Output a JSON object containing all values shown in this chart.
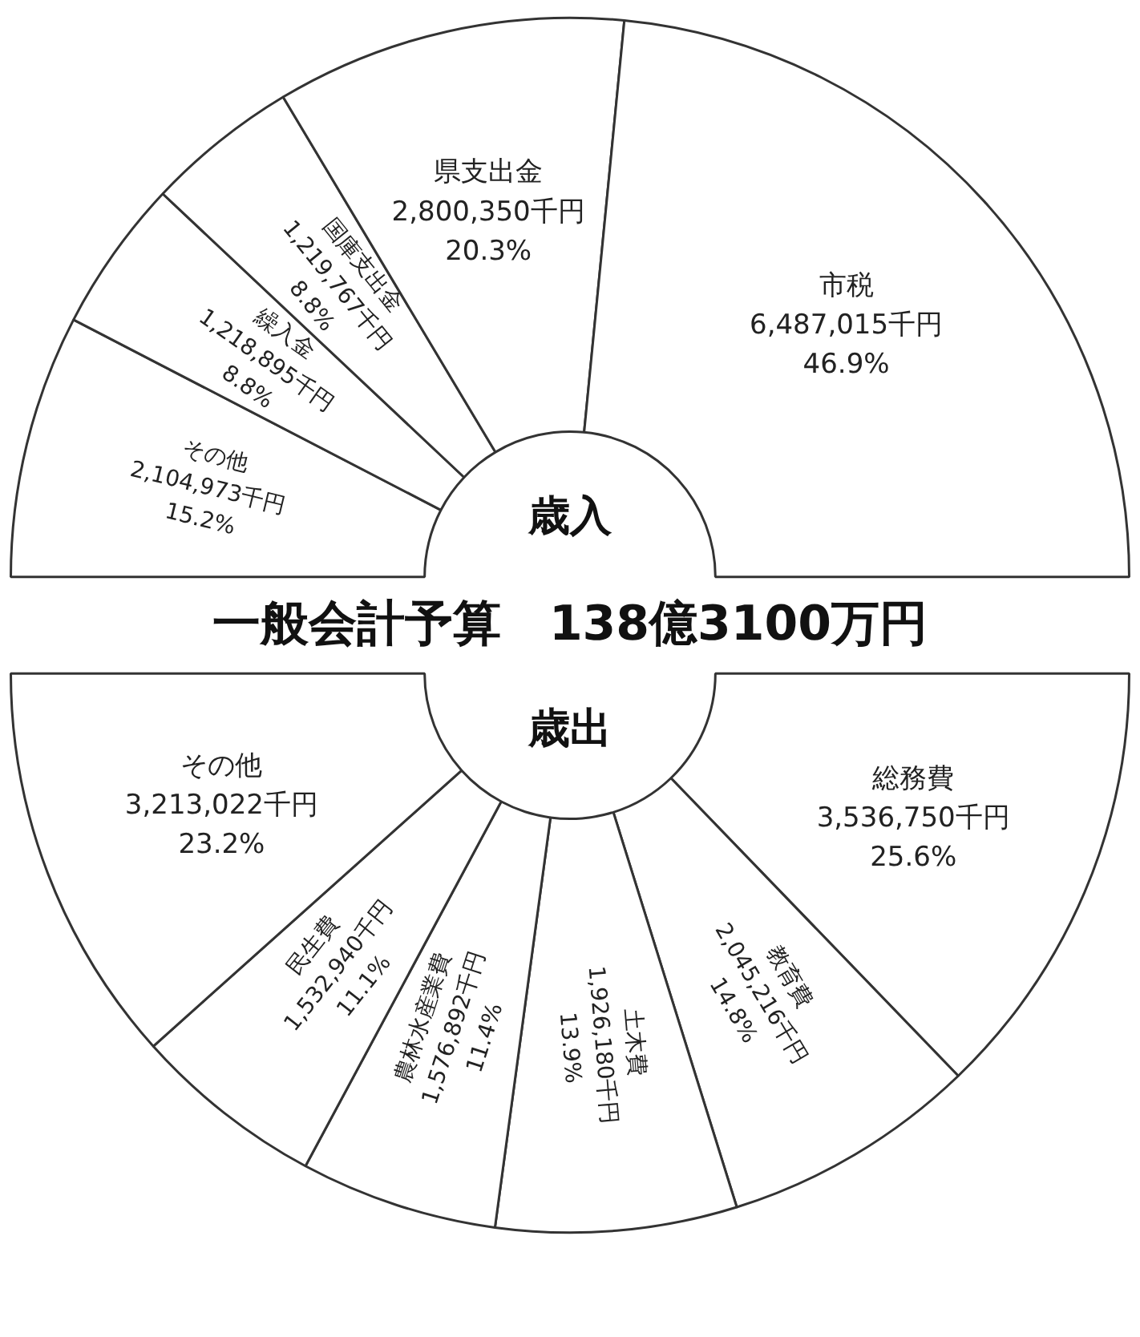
{
  "chart_data": [
    {
      "type": "donut",
      "title": "一般会計予算　138億3100万円",
      "subtitle": "歳入",
      "categories": [
        "その他",
        "繰入金",
        "国庫支出金",
        "県支出金",
        "市税"
      ],
      "values": [
        2104973,
        1218895,
        1219767,
        2800350,
        6487015
      ],
      "colors": [
        "#ffffff",
        "#ffffff",
        "#ffffff",
        "#ffffff",
        "#ffffff"
      ],
      "value_labels": [
        "2,104,973千円\n15.2%",
        "1,218,895千円\n8.8%",
        "1,219,767千円\n8.8%",
        "2,800,350千円\n20.3%",
        "6,487,015千円\n46.9%"
      ],
      "legend": false
    },
    {
      "type": "donut",
      "subtitle": "歳出",
      "categories": [
        "総務費",
        "教育費",
        "土木費",
        "農林水産業費",
        "民生費",
        "その他"
      ],
      "values": [
        3536750,
        2045216,
        1926180,
        1576892,
        1532940,
        3213022
      ],
      "colors": [
        "#ffffff",
        "#ffffff",
        "#ffffff",
        "#ffffff",
        "#ffffff",
        "#ffffff"
      ],
      "value_labels": [
        "3,536,750千円\n25.6%",
        "2,045,216千円\n14.8%",
        "1,926,180千円\n13.9%",
        "1,576,892千円\n11.4%",
        "1,532,940千円\n11.1%",
        "3,213,022千円\n23.2%"
      ],
      "legend": false
    }
  ]
}
